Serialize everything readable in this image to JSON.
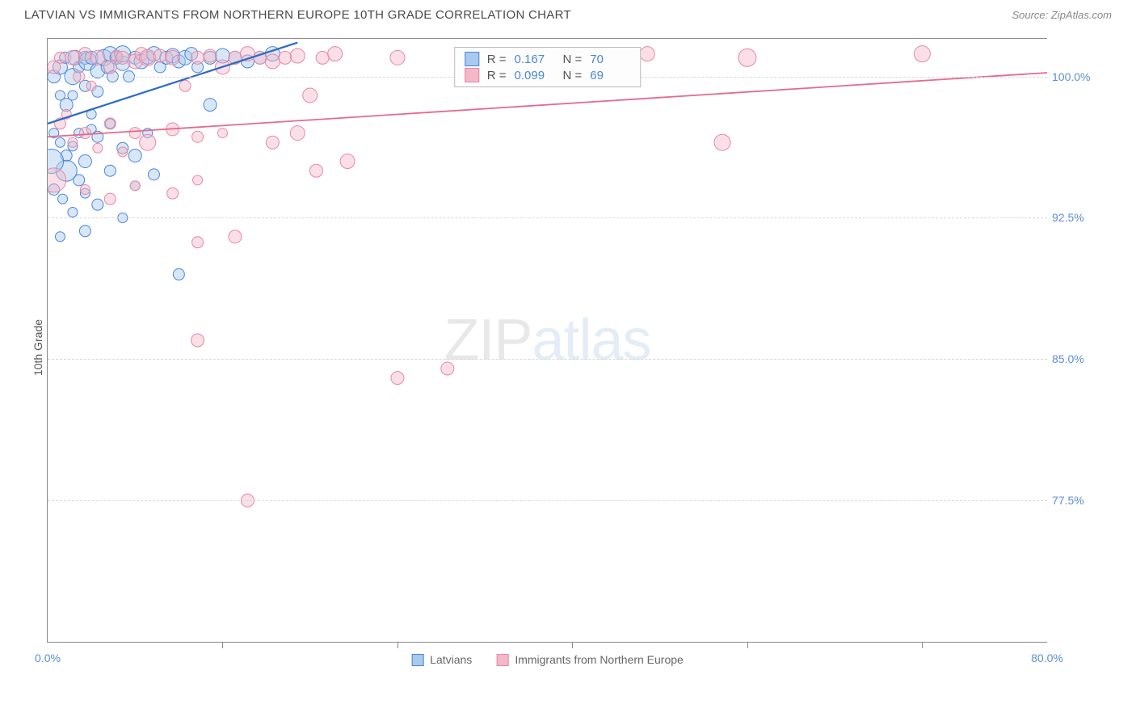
{
  "title": "LATVIAN VS IMMIGRANTS FROM NORTHERN EUROPE 10TH GRADE CORRELATION CHART",
  "source": "Source: ZipAtlas.com",
  "y_axis_title": "10th Grade",
  "watermark": {
    "zip": "ZIP",
    "atlas": "atlas"
  },
  "chart": {
    "type": "scatter",
    "xlim": [
      0,
      80
    ],
    "ylim": [
      70,
      102
    ],
    "x_ticks": [
      0,
      80
    ],
    "x_tick_labels": [
      "0.0%",
      "80.0%"
    ],
    "x_minor_ticks": [
      14,
      28,
      42,
      56,
      70
    ],
    "y_ticks": [
      77.5,
      85.0,
      92.5,
      100.0
    ],
    "y_tick_labels": [
      "77.5%",
      "85.0%",
      "92.5%",
      "100.0%"
    ],
    "grid_color": "#d8d8d8",
    "background_color": "#ffffff",
    "border_color": "#888888"
  },
  "series": [
    {
      "name": "Latvians",
      "color_fill": "#a9c9ef",
      "color_stroke": "#4a86d8",
      "fill_opacity": 0.45,
      "r_value": "0.167",
      "n_value": "70",
      "trend": {
        "x1": 0,
        "y1": 97.5,
        "x2": 20,
        "y2": 101.8,
        "stroke": "#2b6bc4",
        "width": 2.2
      },
      "points": [
        [
          0.5,
          100,
          8
        ],
        [
          0.5,
          97,
          6
        ],
        [
          1,
          99,
          6
        ],
        [
          1,
          100.5,
          9
        ],
        [
          1.4,
          101,
          7
        ],
        [
          1.5,
          98.5,
          8
        ],
        [
          2,
          100,
          10
        ],
        [
          2,
          99,
          6
        ],
        [
          2.2,
          101,
          9
        ],
        [
          2.5,
          100.5,
          7
        ],
        [
          2.5,
          97,
          6
        ],
        [
          3,
          101,
          8
        ],
        [
          3,
          99.5,
          7
        ],
        [
          3.2,
          100.8,
          11
        ],
        [
          3.5,
          98,
          6
        ],
        [
          3.5,
          101,
          8
        ],
        [
          4,
          100.3,
          9
        ],
        [
          4,
          99.2,
          7
        ],
        [
          4.5,
          101,
          10
        ],
        [
          4.8,
          100.5,
          8
        ],
        [
          5,
          101.2,
          9
        ],
        [
          5.2,
          100,
          7
        ],
        [
          5.5,
          101,
          8
        ],
        [
          6,
          100.7,
          9
        ],
        [
          6,
          101.2,
          10
        ],
        [
          6.5,
          100,
          7
        ],
        [
          7,
          101,
          8
        ],
        [
          7.5,
          100.8,
          9
        ],
        [
          8,
          101,
          8
        ],
        [
          8.5,
          101.2,
          9
        ],
        [
          9,
          100.5,
          7
        ],
        [
          9.5,
          101,
          8
        ],
        [
          10,
          101.1,
          9
        ],
        [
          10.5,
          100.8,
          8
        ],
        [
          11,
          101,
          9
        ],
        [
          11.5,
          101.2,
          8
        ],
        [
          12,
          100.5,
          7
        ],
        [
          13,
          101,
          8
        ],
        [
          14,
          101.1,
          9
        ],
        [
          15,
          101,
          8
        ],
        [
          16,
          100.8,
          8
        ],
        [
          17,
          101,
          8
        ],
        [
          18,
          101.2,
          9
        ],
        [
          1,
          96.5,
          6
        ],
        [
          1.5,
          95.8,
          7
        ],
        [
          2,
          96.3,
          6
        ],
        [
          3,
          95.5,
          8
        ],
        [
          3.5,
          97.2,
          6
        ],
        [
          4,
          96.8,
          7
        ],
        [
          5,
          97.5,
          6
        ],
        [
          6,
          96.2,
          7
        ],
        [
          7,
          95.8,
          8
        ],
        [
          8,
          97,
          6
        ],
        [
          0.5,
          94,
          7
        ],
        [
          1.2,
          93.5,
          6
        ],
        [
          2.5,
          94.5,
          7
        ],
        [
          3,
          93.8,
          6
        ],
        [
          5,
          95,
          7
        ],
        [
          7,
          94.2,
          6
        ],
        [
          8.5,
          94.8,
          7
        ],
        [
          2,
          92.8,
          6
        ],
        [
          4,
          93.2,
          7
        ],
        [
          6,
          92.5,
          6
        ],
        [
          1,
          91.5,
          6
        ],
        [
          3,
          91.8,
          7
        ],
        [
          10.5,
          89.5,
          7
        ],
        [
          13,
          98.5,
          8
        ],
        [
          1.5,
          95,
          13
        ],
        [
          0.3,
          95.5,
          15
        ]
      ]
    },
    {
      "name": "Immigrants from Northern Europe",
      "color_fill": "#f4b8c8",
      "color_stroke": "#e788a5",
      "fill_opacity": 0.45,
      "r_value": "0.099",
      "n_value": "69",
      "trend": {
        "x1": 0,
        "y1": 96.8,
        "x2": 80,
        "y2": 100.2,
        "stroke": "#e56a8d",
        "width": 1.8
      },
      "points": [
        [
          0.5,
          100.5,
          8
        ],
        [
          1,
          101,
          7
        ],
        [
          1.5,
          98,
          6
        ],
        [
          2,
          101,
          9
        ],
        [
          2.5,
          100,
          7
        ],
        [
          3,
          101.2,
          8
        ],
        [
          3.5,
          99.5,
          6
        ],
        [
          4,
          101,
          9
        ],
        [
          5,
          100.5,
          8
        ],
        [
          5.5,
          101.1,
          7
        ],
        [
          6,
          101,
          8
        ],
        [
          7,
          100.8,
          9
        ],
        [
          7.5,
          101.2,
          8
        ],
        [
          8,
          101,
          10
        ],
        [
          9,
          101.1,
          8
        ],
        [
          10,
          101,
          9
        ],
        [
          11,
          99.5,
          7
        ],
        [
          12,
          101,
          8
        ],
        [
          13,
          101.1,
          8
        ],
        [
          14,
          100.5,
          9
        ],
        [
          15,
          101,
          8
        ],
        [
          16,
          101.2,
          9
        ],
        [
          17,
          101,
          8
        ],
        [
          18,
          100.8,
          9
        ],
        [
          19,
          101,
          8
        ],
        [
          20,
          101.1,
          9
        ],
        [
          21,
          99,
          9
        ],
        [
          22,
          101,
          8
        ],
        [
          23,
          101.2,
          9
        ],
        [
          28,
          101,
          9
        ],
        [
          34,
          101,
          10
        ],
        [
          48,
          101.2,
          9
        ],
        [
          56,
          101,
          11
        ],
        [
          70,
          101.2,
          10
        ],
        [
          1,
          97.5,
          7
        ],
        [
          2,
          96.5,
          6
        ],
        [
          3,
          97,
          7
        ],
        [
          4,
          96.2,
          6
        ],
        [
          5,
          97.5,
          7
        ],
        [
          6,
          96,
          6
        ],
        [
          7,
          97,
          7
        ],
        [
          8,
          96.5,
          10
        ],
        [
          10,
          97.2,
          8
        ],
        [
          12,
          96.8,
          7
        ],
        [
          14,
          97,
          6
        ],
        [
          18,
          96.5,
          8
        ],
        [
          20,
          97,
          9
        ],
        [
          21.5,
          95,
          8
        ],
        [
          24,
          95.5,
          9
        ],
        [
          3,
          94,
          6
        ],
        [
          5,
          93.5,
          7
        ],
        [
          7,
          94.2,
          6
        ],
        [
          10,
          93.8,
          7
        ],
        [
          12,
          94.5,
          6
        ],
        [
          15,
          91.5,
          8
        ],
        [
          12,
          91.2,
          7
        ],
        [
          12,
          86,
          8
        ],
        [
          28,
          84,
          8
        ],
        [
          32,
          84.5,
          8
        ],
        [
          16,
          77.5,
          8
        ],
        [
          54,
          96.5,
          10
        ],
        [
          0.5,
          94.5,
          15
        ]
      ]
    }
  ],
  "bottom_legend": [
    {
      "label": "Latvians",
      "fill": "#a9c9ef",
      "stroke": "#4a86d8"
    },
    {
      "label": "Immigrants from Northern Europe",
      "fill": "#f4b8c8",
      "stroke": "#e788a5"
    }
  ]
}
